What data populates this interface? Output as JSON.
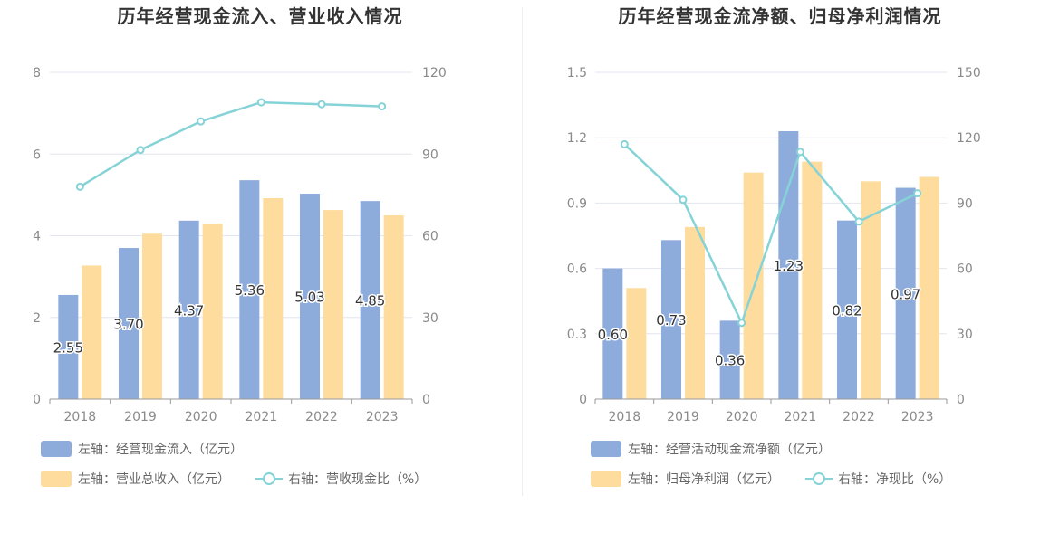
{
  "charts": [
    {
      "title": "历年经营现金流入、营业收入情况",
      "legend": {
        "bar1": "左轴：经营现金流入（亿元）",
        "bar2": "左轴：营业总收入（亿元）",
        "line": "右轴：营收现金比（%）"
      }
    },
    {
      "title": "历年经营现金流净额、归母净利润情况",
      "legend": {
        "bar1": "左轴：经营活动现金流净额（亿元）",
        "bar2": "左轴：归母净利润（亿元）",
        "line": "右轴：净现比（%）"
      }
    }
  ],
  "colors": {
    "bar1": "#8eacdb",
    "bar2": "#fedc9e",
    "line": "#85d3d7",
    "grid": "#e3e6f0",
    "axis_text": "#8a8a8a"
  },
  "chart_data": [
    {
      "type": "bar",
      "title": "历年经营现金流入、营业收入情况",
      "categories": [
        "2018",
        "2019",
        "2020",
        "2021",
        "2022",
        "2023"
      ],
      "left_axis": {
        "ylim": [
          0,
          8
        ],
        "ticks": [
          "0",
          "2",
          "4",
          "6",
          "8"
        ]
      },
      "right_axis": {
        "ylim": [
          0,
          120
        ],
        "ticks": [
          "0",
          "30",
          "60",
          "90",
          "120"
        ]
      },
      "series": [
        {
          "name": "左轴：经营现金流入（亿元）",
          "axis": "left",
          "type": "bar",
          "values": [
            2.55,
            3.7,
            4.37,
            5.36,
            5.03,
            4.85
          ],
          "labels": [
            "2.55",
            "3.70",
            "4.37",
            "5.36",
            "5.03",
            "4.85"
          ]
        },
        {
          "name": "左轴：营业总收入（亿元）",
          "axis": "left",
          "type": "bar",
          "values": [
            3.27,
            4.05,
            4.3,
            4.92,
            4.63,
            4.5
          ]
        },
        {
          "name": "右轴：营收现金比（%）",
          "axis": "right",
          "type": "line",
          "values": [
            78,
            91.5,
            102,
            109,
            108.3,
            107.5
          ]
        }
      ]
    },
    {
      "type": "bar",
      "title": "历年经营现金流净额、归母净利润情况",
      "categories": [
        "2018",
        "2019",
        "2020",
        "2021",
        "2022",
        "2023"
      ],
      "left_axis": {
        "ylim": [
          0,
          1.5
        ],
        "ticks": [
          "0",
          "0.3",
          "0.6",
          "0.9",
          "1.2",
          "1.5"
        ]
      },
      "right_axis": {
        "ylim": [
          0,
          150
        ],
        "ticks": [
          "0",
          "30",
          "60",
          "90",
          "120",
          "150"
        ]
      },
      "series": [
        {
          "name": "左轴：经营活动现金流净额（亿元）",
          "axis": "left",
          "type": "bar",
          "values": [
            0.6,
            0.73,
            0.36,
            1.23,
            0.82,
            0.97
          ],
          "labels": [
            "0.60",
            "0.73",
            "0.36",
            "1.23",
            "0.82",
            "0.97"
          ]
        },
        {
          "name": "左轴：归母净利润（亿元）",
          "axis": "left",
          "type": "bar",
          "values": [
            0.51,
            0.79,
            1.04,
            1.09,
            1.0,
            1.02
          ]
        },
        {
          "name": "右轴：净现比（%）",
          "axis": "right",
          "type": "line",
          "values": [
            117,
            91.5,
            35,
            113.5,
            81.5,
            94.5
          ]
        }
      ]
    }
  ]
}
